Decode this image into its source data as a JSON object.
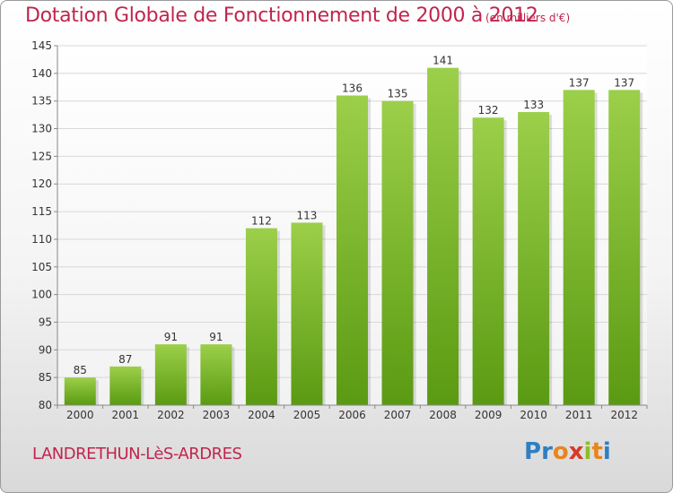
{
  "header": {
    "title": "Dotation Globale de Fonctionnement de 2000 à 2012",
    "units": "(en milliers d'€)"
  },
  "footer": {
    "commune": "LANDRETHUN-LèS-ARDRES",
    "logo_text": "Proxiti",
    "logo_colors": [
      "#2e7fc2",
      "#2e7fc2",
      "#e8851e",
      "#d53a2a",
      "#8cbf26",
      "#e8851e",
      "#2e7fc2"
    ]
  },
  "chart_data": {
    "type": "bar",
    "categories": [
      "2000",
      "2001",
      "2002",
      "2003",
      "2004",
      "2005",
      "2006",
      "2007",
      "2008",
      "2009",
      "2010",
      "2011",
      "2012"
    ],
    "values": [
      85,
      87,
      91,
      91,
      112,
      113,
      136,
      135,
      141,
      132,
      133,
      137,
      137
    ],
    "title": "Dotation Globale de Fonctionnement de 2000 à 2012",
    "xlabel": "",
    "ylabel": "",
    "ylim": [
      80,
      145
    ],
    "yticks": [
      80,
      85,
      90,
      95,
      100,
      105,
      110,
      115,
      120,
      125,
      130,
      135,
      140,
      145
    ],
    "grid": true,
    "bar_color_top": "#9ccf4a",
    "bar_color_bottom": "#5a9a12",
    "grid_color": "#d8d8d8"
  }
}
